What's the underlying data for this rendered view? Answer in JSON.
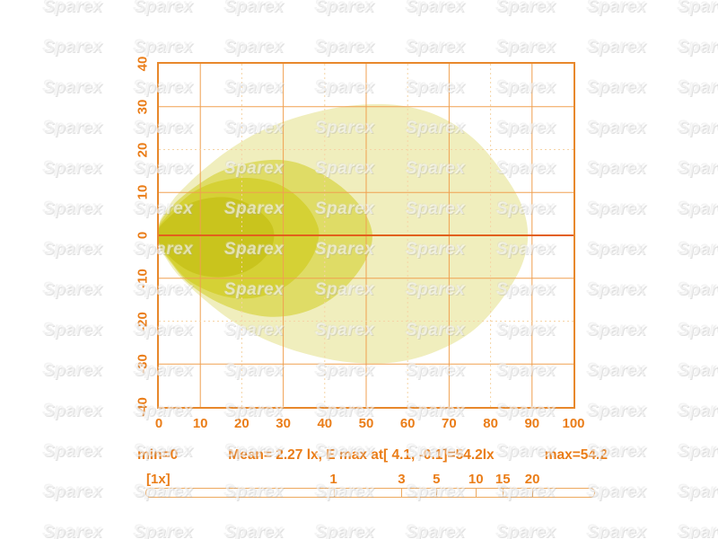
{
  "watermark": {
    "text": "Sparex"
  },
  "colors": {
    "label_orange": "#ea7d18",
    "plot_border": "#e8882b",
    "grid_strong": "#f0a050",
    "grid_faint": "#f6d4a6",
    "center_line": "#e2601c",
    "level_1_core": "#c9c41d",
    "level_2": "#d5d135",
    "level_3": "#dfdc66",
    "level_4_outer": "#f0eebd"
  },
  "chart_data": {
    "type": "heatmap",
    "description": "Isolux light-distribution contour plot (lux footprint of a work lamp)",
    "title": "",
    "xlabel": "",
    "ylabel": "",
    "xlim": [
      0,
      100
    ],
    "ylim": [
      -40,
      40
    ],
    "grid": true,
    "x_ticks": [
      0,
      10,
      20,
      30,
      40,
      50,
      60,
      70,
      80,
      90,
      100
    ],
    "y_ticks": [
      40,
      30,
      20,
      10,
      0,
      -10,
      -20,
      -30,
      -40
    ],
    "contours": [
      {
        "name": "level_4_outer",
        "color": "#f0eebd",
        "points": [
          [
            0,
            2.5
          ],
          [
            1.5,
            5.5
          ],
          [
            4,
            9
          ],
          [
            7,
            12
          ],
          [
            11,
            15.5
          ],
          [
            17,
            20
          ],
          [
            25,
            24.5
          ],
          [
            35,
            28
          ],
          [
            46,
            30.2
          ],
          [
            57,
            30.4
          ],
          [
            67,
            28
          ],
          [
            76,
            22.5
          ],
          [
            83,
            14.5
          ],
          [
            87.5,
            7
          ],
          [
            89,
            0
          ],
          [
            87.5,
            -7
          ],
          [
            83,
            -14.5
          ],
          [
            76,
            -22
          ],
          [
            67,
            -27
          ],
          [
            57,
            -29.6
          ],
          [
            46,
            -29.6
          ],
          [
            35,
            -27.5
          ],
          [
            25,
            -24
          ],
          [
            17,
            -19.5
          ],
          [
            11,
            -15
          ],
          [
            7,
            -11.5
          ],
          [
            4,
            -8.5
          ],
          [
            1.5,
            -5
          ],
          [
            0,
            -2.5
          ]
        ]
      },
      {
        "name": "level_3",
        "color": "#dfdc66",
        "points": [
          [
            0,
            2.2
          ],
          [
            2,
            5.5
          ],
          [
            5,
            8.5
          ],
          [
            9,
            11.5
          ],
          [
            14,
            14.5
          ],
          [
            20,
            16.5
          ],
          [
            27,
            17.6
          ],
          [
            33,
            17
          ],
          [
            39,
            14.5
          ],
          [
            45,
            10.5
          ],
          [
            49.5,
            5.5
          ],
          [
            51.5,
            0
          ],
          [
            50,
            -5.5
          ],
          [
            46,
            -11
          ],
          [
            40.5,
            -15.5
          ],
          [
            34,
            -18.2
          ],
          [
            27,
            -19
          ],
          [
            20,
            -17.8
          ],
          [
            13,
            -15
          ],
          [
            7,
            -11
          ],
          [
            3,
            -6.5
          ],
          [
            0,
            -2.2
          ]
        ]
      },
      {
        "name": "level_2",
        "color": "#d5d135",
        "points": [
          [
            0,
            1.8
          ],
          [
            2,
            4.5
          ],
          [
            5,
            7.5
          ],
          [
            9,
            10.5
          ],
          [
            14,
            12.5
          ],
          [
            20,
            13.4
          ],
          [
            26,
            12.8
          ],
          [
            31,
            10.8
          ],
          [
            35.5,
            7
          ],
          [
            38,
            3
          ],
          [
            38.6,
            0
          ],
          [
            37.5,
            -4
          ],
          [
            34.5,
            -8.5
          ],
          [
            30,
            -12.2
          ],
          [
            24,
            -14.4
          ],
          [
            18,
            -14.6
          ],
          [
            12,
            -13
          ],
          [
            6.5,
            -10
          ],
          [
            2.5,
            -5.5
          ],
          [
            0,
            -1.8
          ]
        ]
      },
      {
        "name": "level_1_core",
        "color": "#c9c41d",
        "points": [
          [
            0,
            1.5
          ],
          [
            2,
            3.8
          ],
          [
            5,
            6.2
          ],
          [
            9,
            8
          ],
          [
            13,
            8.8
          ],
          [
            17,
            8.8
          ],
          [
            21,
            7.6
          ],
          [
            24.5,
            5.4
          ],
          [
            27,
            2.8
          ],
          [
            27.8,
            0
          ],
          [
            27,
            -3.2
          ],
          [
            24.5,
            -6.2
          ],
          [
            21,
            -8.4
          ],
          [
            16.5,
            -9.6
          ],
          [
            12,
            -9.6
          ],
          [
            8,
            -8.6
          ],
          [
            4.5,
            -6.6
          ],
          [
            1.5,
            -3.8
          ],
          [
            0,
            -1.5
          ]
        ]
      }
    ],
    "stats": {
      "min": "min=0",
      "mean": "Mean= 2.27 lx, E max at[ 4.1, -0.1]=54.2lx",
      "max": "max=54.2"
    },
    "scale_bar": {
      "label": "[1x]",
      "ticks": [
        {
          "label": "1",
          "pos": 0.418
        },
        {
          "label": "3",
          "pos": 0.57
        },
        {
          "label": "5",
          "pos": 0.648
        },
        {
          "label": "10",
          "pos": 0.736
        },
        {
          "label": "15",
          "pos": 0.796
        },
        {
          "label": "20",
          "pos": 0.862
        }
      ]
    }
  }
}
